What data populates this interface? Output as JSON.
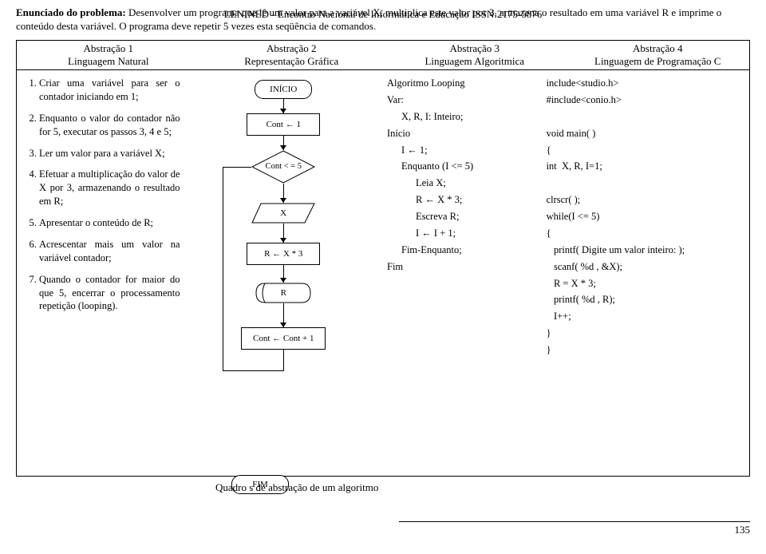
{
  "header": {
    "problem_label": "Enunciado do problema:",
    "problem_text": "Desenvolver um programa que lê um valor para a variável X, multiplica este valor por 3, armazena o resultado em uma variável R e imprime o conteúdo desta variável. O programa deve repetir 5 vezes esta seqüência de comandos.",
    "journal_overlay": "LENINED - Encontro Nacional de Informática e Educação ISSN:2175-5876"
  },
  "abstractions": {
    "row1": [
      "Abstração 1",
      "Abstração 2",
      "Abstração 3",
      "Abstração 4"
    ],
    "row2": [
      "Linguagem Natural",
      "Representação Gráfica",
      "Linguagem Algoritmica",
      "Linguagem de Programação C"
    ]
  },
  "col1_steps": [
    "Criar uma variável para ser o contador iniciando em 1;",
    "Enquanto o valor do contador não for 5, executar os passos 3, 4 e 5;",
    "Ler um valor para a variável X;",
    "Efetuar a multiplicação do valor de X por 3, armazenando o resultado em R;",
    "Apresentar o conteúdo de R;",
    "Acrescentar mais um valor na variável contador;",
    "Quando o contador for maior do que 5, encerrar o processamento repetição (looping)."
  ],
  "flowchart": {
    "start": "INÍCIO",
    "p1": "Cont ← 1",
    "dec": "Cont < = 5",
    "io": "X",
    "p2": "R ← X * 3",
    "disp": "R",
    "p3": "Cont ← Cont + 1",
    "end": "FIM"
  },
  "col3_algo": [
    {
      "t": "Algoritmo Looping",
      "i": 0
    },
    {
      "t": "Var:",
      "i": 0
    },
    {
      "t": "X, R, I: Inteiro;",
      "i": 1
    },
    {
      "t": "Início",
      "i": 0
    },
    {
      "t": "I ← 1;",
      "i": 1
    },
    {
      "t": "Enquanto (I <= 5)",
      "i": 1
    },
    {
      "t": "Leia X;",
      "i": 2
    },
    {
      "t": "R ← X * 3;",
      "i": 2
    },
    {
      "t": "Escreva R;",
      "i": 2
    },
    {
      "t": "I ← I + 1;",
      "i": 2
    },
    {
      "t": "Fim-Enquanto;",
      "i": 1
    },
    {
      "t": "Fim",
      "i": 0
    }
  ],
  "col4_code": [
    "include<studio.h>",
    "#include<conio.h>",
    "",
    "void main( )",
    "{",
    "int  X, R, I=1;",
    "",
    "clrscr( );",
    "while(I <= 5)",
    "{",
    "   printf( Digite um valor inteiro: );",
    "   scanf( %d , &X);",
    "   R = X * 3;",
    "   printf( %d , R);",
    "   I++;",
    "}",
    "}"
  ],
  "caption": "Quadro        s de abstração de um algoritmo",
  "page_number": "135"
}
